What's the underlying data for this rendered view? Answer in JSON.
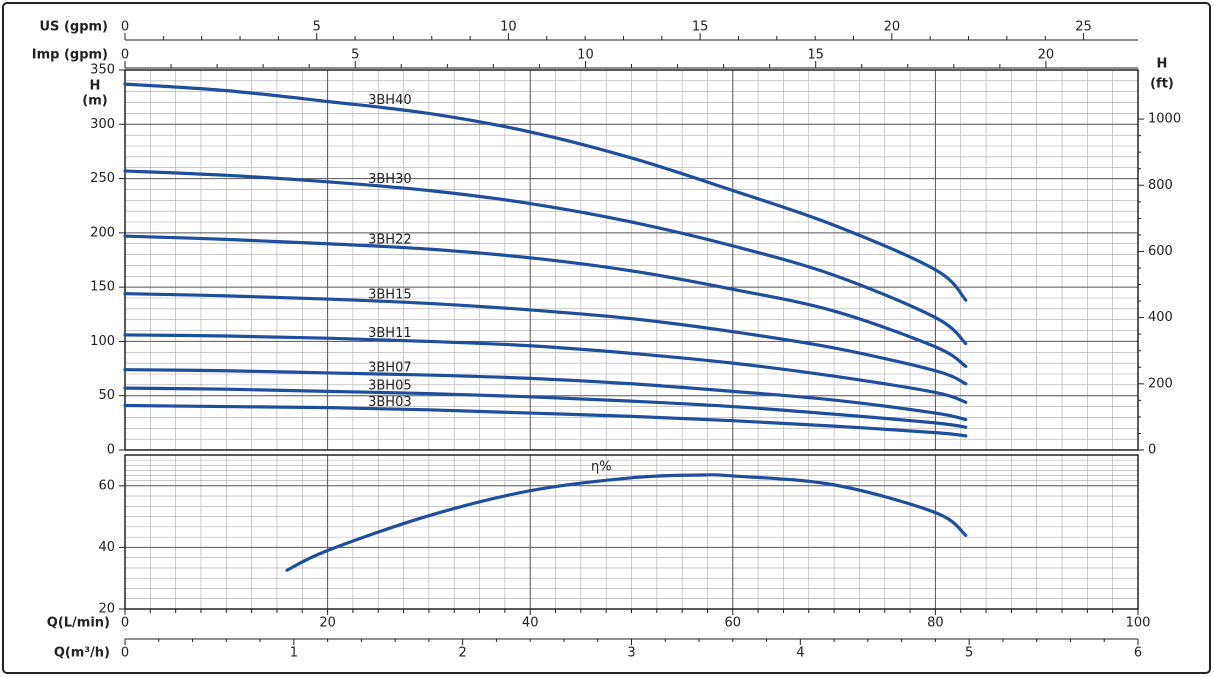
{
  "chart_data": [
    {
      "type": "line",
      "ylabel": [
        "H",
        "(m)"
      ],
      "y2label": [
        "H",
        "(ft)"
      ],
      "ylim": [
        0,
        350
      ],
      "yticks": [
        0,
        50,
        100,
        150,
        200,
        250,
        300,
        350
      ],
      "y2lim": [
        0,
        1148.3
      ],
      "y2ticks": [
        0,
        200,
        400,
        600,
        800,
        1000
      ],
      "grid": true,
      "color": "#1f4e9c",
      "top_axes": [
        {
          "label": "US (gpm)",
          "lim": [
            0,
            26.42
          ],
          "ticks": [
            0,
            5,
            10,
            15,
            20,
            25
          ]
        },
        {
          "label": "Imp (gpm)",
          "lim": [
            0,
            22
          ],
          "ticks": [
            0,
            5,
            10,
            15,
            20
          ]
        }
      ],
      "x": [
        0,
        10,
        20,
        30,
        40,
        50,
        60,
        70,
        80,
        83
      ],
      "series": [
        {
          "name": "3BH40",
          "values": [
            337,
            331,
            321,
            310,
            293,
            269,
            239,
            207,
            166,
            138
          ]
        },
        {
          "name": "3BH30",
          "values": [
            257,
            253,
            247,
            239,
            227,
            210,
            188,
            161,
            122,
            98
          ]
        },
        {
          "name": "3BH22",
          "values": [
            197,
            194,
            190,
            185,
            177,
            165,
            148,
            128,
            95,
            77
          ]
        },
        {
          "name": "3BH15",
          "values": [
            144,
            142,
            139,
            135,
            129,
            121,
            109,
            94,
            73,
            61
          ]
        },
        {
          "name": "3BH11",
          "values": [
            106,
            105,
            103,
            100,
            96,
            89,
            80,
            68,
            53,
            44
          ]
        },
        {
          "name": "3BH07",
          "values": [
            74,
            73,
            71,
            69,
            66,
            61,
            54,
            46,
            34,
            28
          ]
        },
        {
          "name": "3BH05",
          "values": [
            57,
            56,
            54,
            52,
            49,
            45,
            40,
            33,
            25,
            21
          ]
        },
        {
          "name": "3BH03",
          "values": [
            41,
            40,
            39,
            37,
            34,
            31,
            27,
            22,
            16,
            13
          ]
        }
      ]
    },
    {
      "type": "line",
      "name": "η%",
      "color": "#1f4e9c",
      "grid": true,
      "xlabel": "Q(L/min)",
      "xlim": [
        0,
        100
      ],
      "xticks": [
        0,
        20,
        40,
        60,
        80,
        100
      ],
      "x2label": "Q(m³/h)",
      "x2lim": [
        0,
        6
      ],
      "x2ticks": [
        0,
        1,
        2,
        3,
        4,
        5,
        6
      ],
      "ylim": [
        20,
        70
      ],
      "yticks": [
        20,
        40,
        60
      ],
      "x": [
        16,
        20,
        30,
        40,
        50,
        57,
        60,
        70,
        80,
        83
      ],
      "values": [
        32.6,
        39,
        50.3,
        58.4,
        62.6,
        63.5,
        63.2,
        60.3,
        51.3,
        43.9
      ]
    }
  ]
}
